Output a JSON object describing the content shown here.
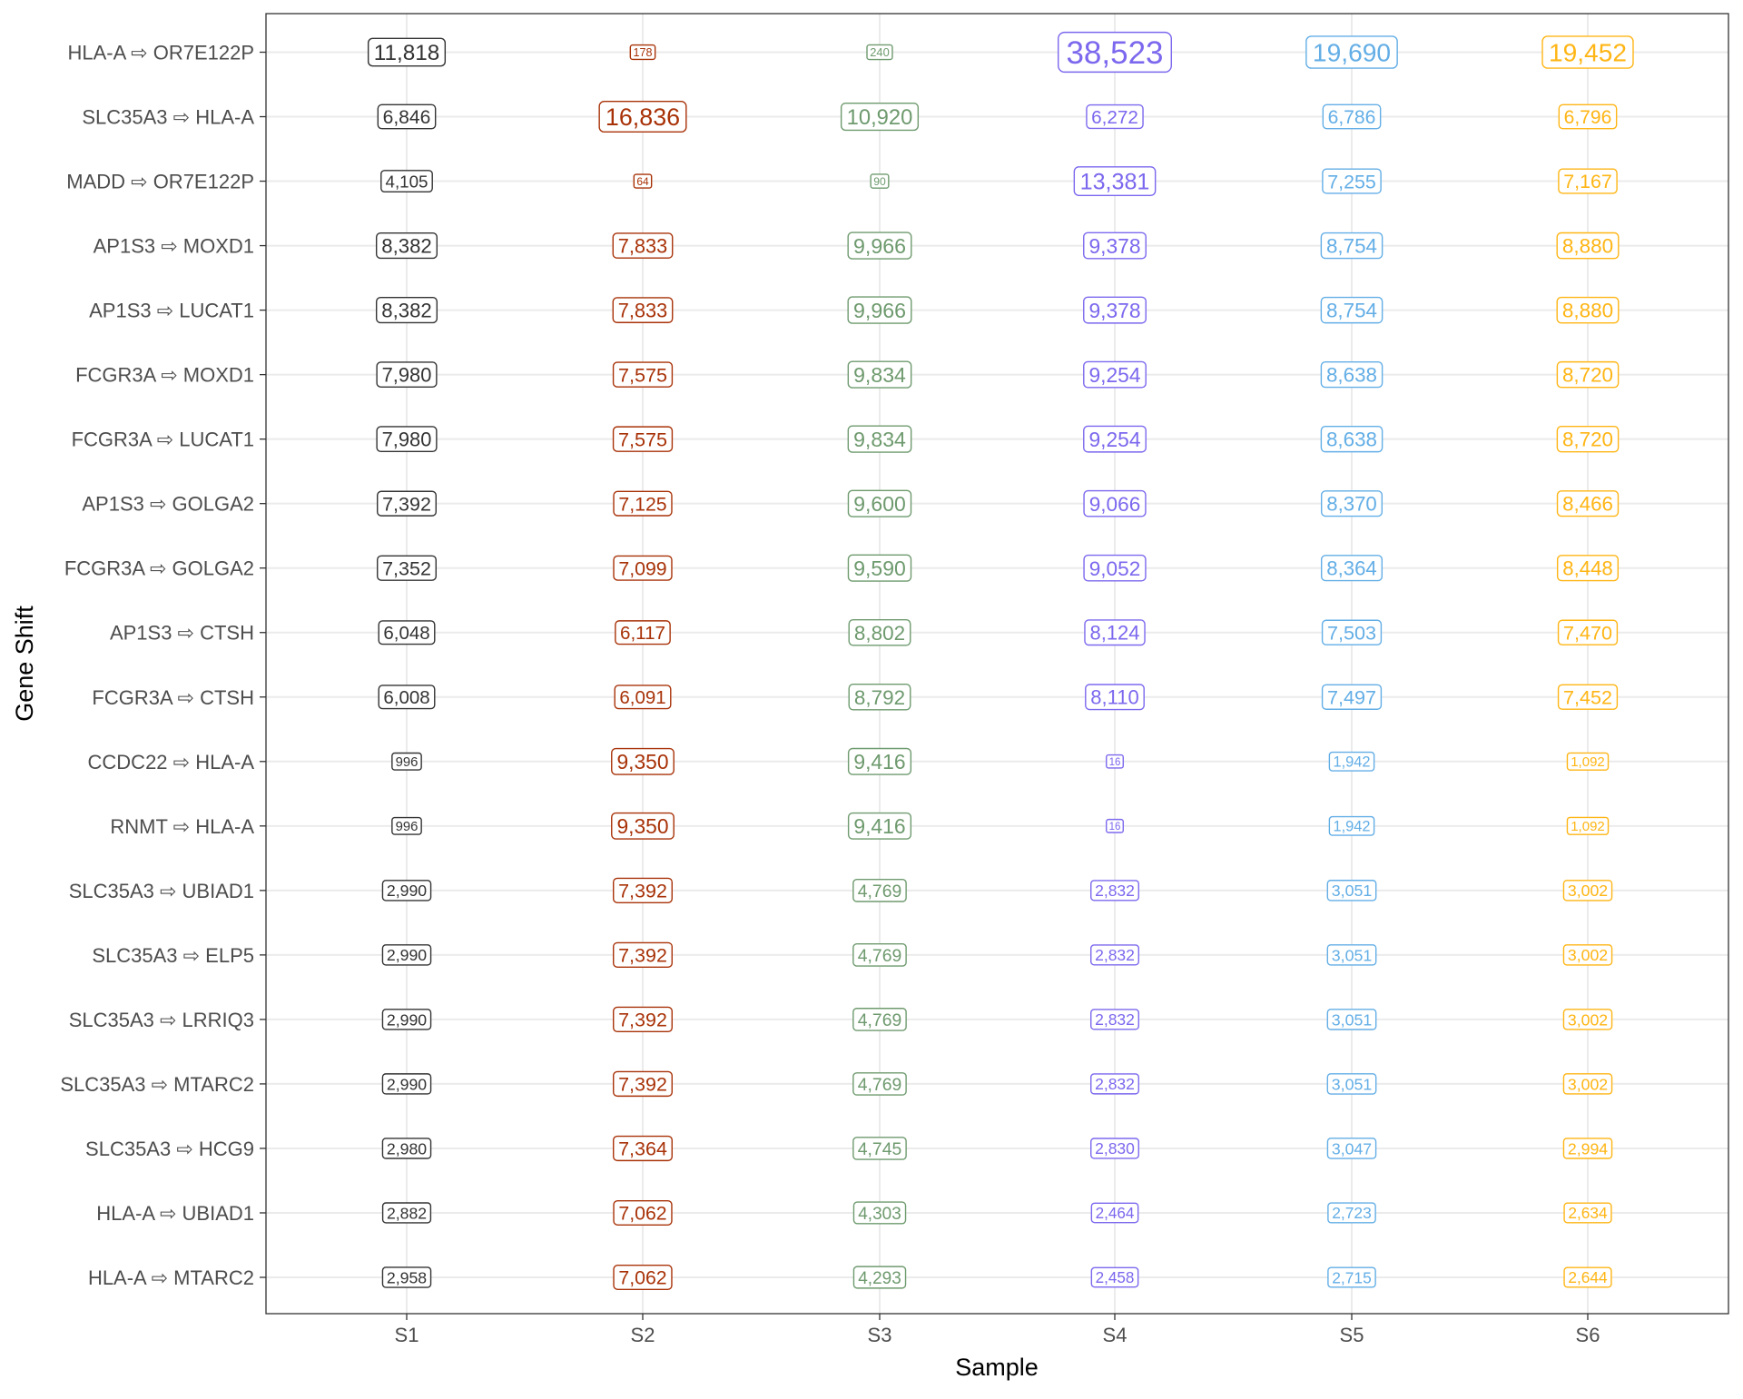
{
  "chart_data": {
    "type": "table",
    "xlabel": "Sample",
    "ylabel": "Gene Shift",
    "grid": true,
    "categories": [
      "S1",
      "S2",
      "S3",
      "S4",
      "S5",
      "S6"
    ],
    "rows": [
      "HLA-A ⇨ OR7E122P",
      "SLC35A3 ⇨ HLA-A",
      "MADD ⇨ OR7E122P",
      "AP1S3 ⇨ MOXD1",
      "AP1S3 ⇨ LUCAT1",
      "FCGR3A ⇨ MOXD1",
      "FCGR3A ⇨ LUCAT1",
      "AP1S3 ⇨ GOLGA2",
      "FCGR3A ⇨ GOLGA2",
      "AP1S3 ⇨ CTSH",
      "FCGR3A ⇨ CTSH",
      "CCDC22 ⇨ HLA-A",
      "RNMT ⇨ HLA-A",
      "SLC35A3 ⇨ UBIAD1",
      "SLC35A3 ⇨ ELP5",
      "SLC35A3 ⇨ LRRIQ3",
      "SLC35A3 ⇨ MTARC2",
      "SLC35A3 ⇨ HCG9",
      "HLA-A ⇨ UBIAD1",
      "HLA-A ⇨ MTARC2"
    ],
    "values": [
      [
        11818,
        178,
        240,
        38523,
        19690,
        19452
      ],
      [
        6846,
        16836,
        10920,
        6272,
        6786,
        6796
      ],
      [
        4105,
        64,
        90,
        13381,
        7255,
        7167
      ],
      [
        8382,
        7833,
        9966,
        9378,
        8754,
        8880
      ],
      [
        8382,
        7833,
        9966,
        9378,
        8754,
        8880
      ],
      [
        7980,
        7575,
        9834,
        9254,
        8638,
        8720
      ],
      [
        7980,
        7575,
        9834,
        9254,
        8638,
        8720
      ],
      [
        7392,
        7125,
        9600,
        9066,
        8370,
        8466
      ],
      [
        7352,
        7099,
        9590,
        9052,
        8364,
        8448
      ],
      [
        6048,
        6117,
        8802,
        8124,
        7503,
        7470
      ],
      [
        6008,
        6091,
        8792,
        8110,
        7497,
        7452
      ],
      [
        996,
        9350,
        9416,
        16,
        1942,
        1092
      ],
      [
        996,
        9350,
        9416,
        16,
        1942,
        1092
      ],
      [
        2990,
        7392,
        4769,
        2832,
        3051,
        3002
      ],
      [
        2990,
        7392,
        4769,
        2832,
        3051,
        3002
      ],
      [
        2990,
        7392,
        4769,
        2832,
        3051,
        3002
      ],
      [
        2990,
        7392,
        4769,
        2832,
        3051,
        3002
      ],
      [
        2980,
        7364,
        4745,
        2830,
        3047,
        2994
      ],
      [
        2882,
        7062,
        4303,
        2464,
        2723,
        2634
      ],
      [
        2958,
        7062,
        4293,
        2458,
        2715,
        2644
      ]
    ],
    "label_size_mapped_to": "value",
    "colors": {
      "S1": "#333333",
      "S2": "#A83208",
      "S3": "#6E9A6E",
      "S4": "#7B68EE",
      "S5": "#63AEE6",
      "S6": "#FFB515"
    }
  }
}
